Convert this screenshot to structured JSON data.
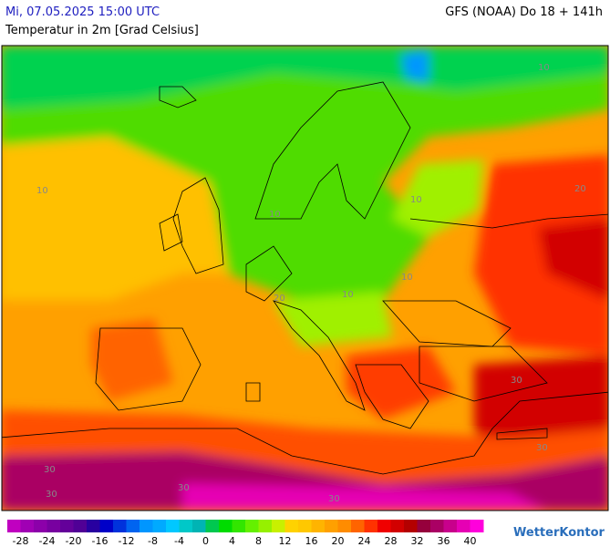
{
  "header": {
    "datetime": "Mi, 07.05.2025 15:00 UTC",
    "model": "GFS (NOAA) Do 18 + 141h",
    "title": "Temperatur in 2m [Grad Celsius]"
  },
  "map": {
    "contour_labels": [
      "10",
      "10",
      "10",
      "10",
      "10",
      "10",
      "20",
      "20",
      "30",
      "30",
      "30",
      "30",
      "30",
      "30"
    ]
  },
  "colorbar": {
    "range": [
      -30,
      42
    ],
    "colors": [
      "#c000c0",
      "#a000b4",
      "#8c00aa",
      "#7800a0",
      "#64009a",
      "#500096",
      "#2800a0",
      "#0000c8",
      "#0032dc",
      "#0064f0",
      "#0096ff",
      "#00aaff",
      "#00c8ff",
      "#00c8c8",
      "#00b4b4",
      "#00c850",
      "#00dc00",
      "#32e600",
      "#64f000",
      "#96f000",
      "#c8f000",
      "#ffd200",
      "#ffc800",
      "#ffb400",
      "#ffa000",
      "#ff8c00",
      "#ff6400",
      "#ff3200",
      "#f00000",
      "#d20000",
      "#b40000",
      "#96003c",
      "#aa0064",
      "#c8008c",
      "#e600b4",
      "#ff00dc"
    ],
    "ticks": [
      -28,
      -24,
      -20,
      -16,
      -12,
      -8,
      -4,
      0,
      4,
      8,
      12,
      16,
      20,
      24,
      28,
      32,
      36,
      40
    ]
  },
  "brand": "WetterKontor"
}
